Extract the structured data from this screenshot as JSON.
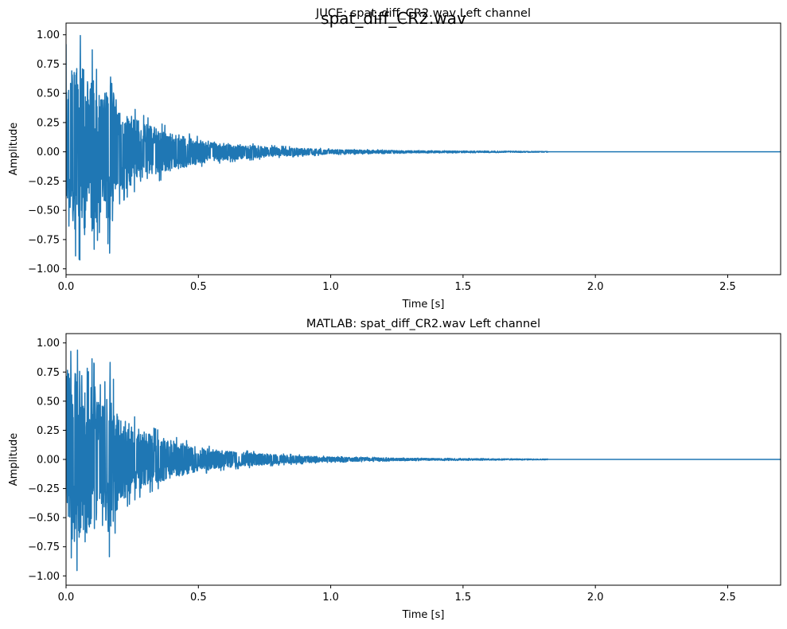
{
  "figure": {
    "suptitle": "spat_diff_CR2.wav"
  },
  "chart_data": [
    {
      "type": "line",
      "title": "JUCE: spat_diff_CR2.wav Left channel",
      "xlabel": "Time [s]",
      "ylabel": "Amplitude",
      "xlim": [
        0,
        2.7
      ],
      "ylim": [
        -1.05,
        1.1
      ],
      "xticks": [
        0,
        0.5,
        1.0,
        1.5,
        2.0,
        2.5
      ],
      "xtick_labels": [
        "0.0",
        "0.5",
        "1.0",
        "1.5",
        "2.0",
        "2.5"
      ],
      "yticks": [
        -1.0,
        -0.75,
        -0.5,
        -0.25,
        0.0,
        0.25,
        0.5,
        0.75,
        1.0
      ],
      "ytick_labels": [
        "−1.00",
        "−0.75",
        "−0.50",
        "−0.25",
        "0.00",
        "0.25",
        "0.50",
        "0.75",
        "1.00"
      ],
      "grid": false,
      "line_color": "#1f77b4",
      "series": [
        {
          "description_of_shape": "decaying noise",
          "peak_positive": 1.0,
          "peak_positive_time": 0.06,
          "peak_negative": -0.94,
          "peak_negative_time": 0.06,
          "signal_end_time": 1.82,
          "tail_value_after_end": 0.0,
          "peaks": [
            {
              "t": 0.005,
              "min": -0.5,
              "max": 0.92
            },
            {
              "t": 0.02,
              "min": -0.85,
              "max": 0.95
            },
            {
              "t": 0.04,
              "min": -0.9,
              "max": 0.9
            },
            {
              "t": 0.055,
              "min": -0.93,
              "max": 1.0
            },
            {
              "t": 0.07,
              "min": -0.92,
              "max": 0.85
            },
            {
              "t": 0.085,
              "min": -0.7,
              "max": 0.75
            },
            {
              "t": 0.1,
              "min": -0.87,
              "max": 0.88
            },
            {
              "t": 0.12,
              "min": -0.75,
              "max": 0.65
            },
            {
              "t": 0.14,
              "min": -0.55,
              "max": 0.55
            },
            {
              "t": 0.165,
              "min": -0.87,
              "max": 0.85
            },
            {
              "t": 0.2,
              "min": -0.45,
              "max": 0.45
            },
            {
              "t": 0.25,
              "min": -0.35,
              "max": 0.38
            },
            {
              "t": 0.3,
              "min": -0.3,
              "max": 0.3
            },
            {
              "t": 0.4,
              "min": -0.2,
              "max": 0.2
            },
            {
              "t": 0.5,
              "min": -0.13,
              "max": 0.13
            },
            {
              "t": 0.6,
              "min": -0.09,
              "max": 0.09
            },
            {
              "t": 0.8,
              "min": -0.05,
              "max": 0.05
            },
            {
              "t": 1.0,
              "min": -0.025,
              "max": 0.025
            },
            {
              "t": 1.3,
              "min": -0.012,
              "max": 0.012
            },
            {
              "t": 1.82,
              "min": -0.004,
              "max": 0.004
            }
          ]
        }
      ]
    },
    {
      "type": "line",
      "title": "MATLAB: spat_diff_CR2.wav Left channel",
      "xlabel": "Time [s]",
      "ylabel": "Amplitude",
      "xlim": [
        0,
        2.7
      ],
      "ylim": [
        -1.08,
        1.08
      ],
      "xticks": [
        0,
        0.5,
        1.0,
        1.5,
        2.0,
        2.5
      ],
      "xtick_labels": [
        "0.0",
        "0.5",
        "1.0",
        "1.5",
        "2.0",
        "2.5"
      ],
      "yticks": [
        -1.0,
        -0.75,
        -0.5,
        -0.25,
        0.0,
        0.25,
        0.5,
        0.75,
        1.0
      ],
      "ytick_labels": [
        "−1.00",
        "−0.75",
        "−0.50",
        "−0.25",
        "0.00",
        "0.25",
        "0.50",
        "0.75",
        "1.00"
      ],
      "grid": false,
      "line_color": "#1f77b4",
      "series": [
        {
          "description_of_shape": "decaying noise",
          "peak_positive": 0.98,
          "peak_positive_time": 0.005,
          "peak_negative": -1.0,
          "peak_negative_time": 0.055,
          "signal_end_time": 1.82,
          "tail_value_after_end": 0.0,
          "peaks": [
            {
              "t": 0.005,
              "min": -0.55,
              "max": 0.98
            },
            {
              "t": 0.02,
              "min": -0.85,
              "max": 0.92
            },
            {
              "t": 0.04,
              "min": -0.95,
              "max": 0.93
            },
            {
              "t": 0.055,
              "min": -1.0,
              "max": 0.97
            },
            {
              "t": 0.07,
              "min": -0.95,
              "max": 0.85
            },
            {
              "t": 0.085,
              "min": -0.72,
              "max": 0.75
            },
            {
              "t": 0.1,
              "min": -0.88,
              "max": 0.88
            },
            {
              "t": 0.12,
              "min": -0.7,
              "max": 0.68
            },
            {
              "t": 0.14,
              "min": -0.55,
              "max": 0.6
            },
            {
              "t": 0.165,
              "min": -0.85,
              "max": 0.85
            },
            {
              "t": 0.2,
              "min": -0.48,
              "max": 0.45
            },
            {
              "t": 0.25,
              "min": -0.36,
              "max": 0.38
            },
            {
              "t": 0.3,
              "min": -0.3,
              "max": 0.3
            },
            {
              "t": 0.4,
              "min": -0.2,
              "max": 0.2
            },
            {
              "t": 0.5,
              "min": -0.13,
              "max": 0.13
            },
            {
              "t": 0.6,
              "min": -0.09,
              "max": 0.09
            },
            {
              "t": 0.8,
              "min": -0.05,
              "max": 0.05
            },
            {
              "t": 1.0,
              "min": -0.025,
              "max": 0.025
            },
            {
              "t": 1.3,
              "min": -0.012,
              "max": 0.012
            },
            {
              "t": 1.82,
              "min": -0.004,
              "max": 0.004
            }
          ]
        }
      ]
    }
  ]
}
